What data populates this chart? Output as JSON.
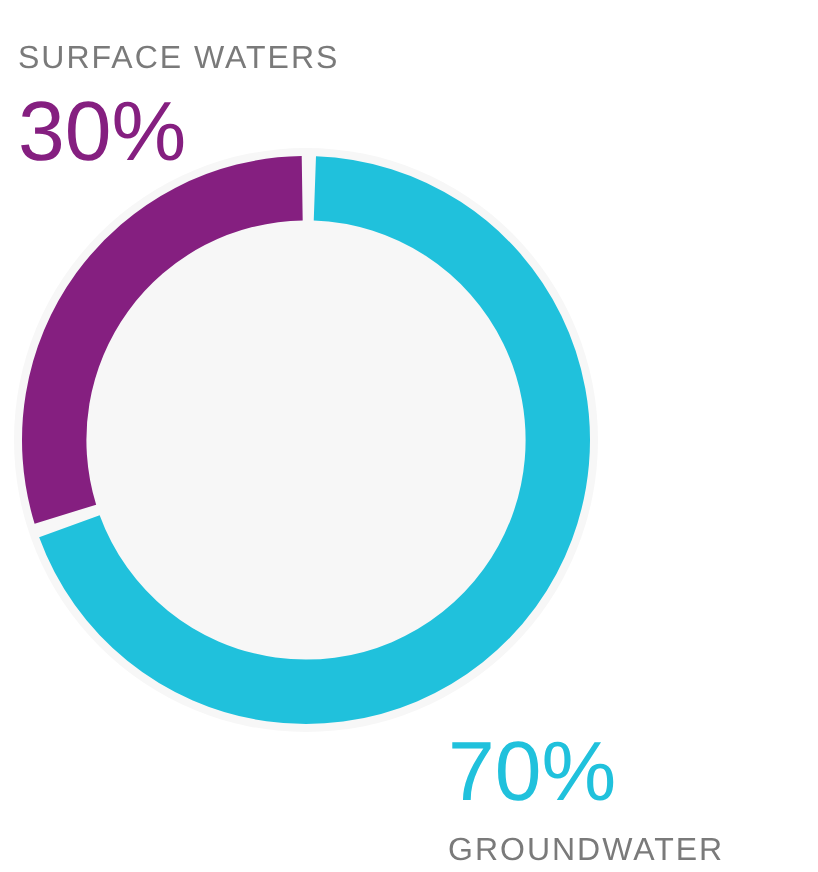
{
  "chart_data": {
    "type": "donut",
    "categories": [
      "SURFACE WATERS",
      "GROUNDWATER"
    ],
    "values": [
      30,
      70
    ],
    "colors": [
      "#851f80",
      "#20c1dc"
    ],
    "value_labels": [
      "30%",
      "70%"
    ]
  }
}
